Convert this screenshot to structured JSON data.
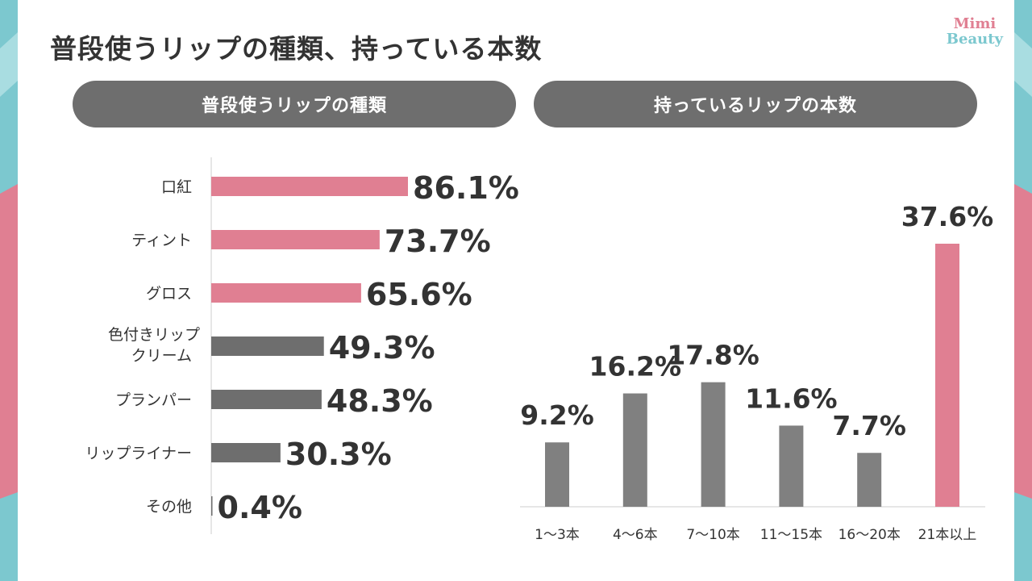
{
  "page": {
    "title": "普段使うリップの種類、持っている本数",
    "logo_line1": "Mimi",
    "logo_line2": "Beauty"
  },
  "colors": {
    "pink": "#e07f92",
    "gray": "#6e6e6e",
    "bar_gray": "#808080",
    "teal": "#7cc8cf",
    "text": "#333333"
  },
  "chart_data": [
    {
      "type": "bar",
      "orientation": "horizontal",
      "title": "普段使うリップの種類",
      "categories": [
        "口紅",
        "ティント",
        "グロス",
        "色付きリップ\nクリーム",
        "プランパー",
        "リップライナー",
        "その他"
      ],
      "values": [
        86.1,
        73.7,
        65.6,
        49.3,
        48.3,
        30.3,
        0.4
      ],
      "value_labels": [
        "86.1%",
        "73.7%",
        "65.6%",
        "49.3%",
        "48.3%",
        "30.3%",
        "0.4%"
      ],
      "highlight": [
        true,
        true,
        true,
        false,
        false,
        false,
        false
      ],
      "unit": "%"
    },
    {
      "type": "bar",
      "orientation": "vertical",
      "title": "持っているリップの本数",
      "categories": [
        "1〜3本",
        "4〜6本",
        "7〜10本",
        "11〜15本",
        "16〜20本",
        "21本以上"
      ],
      "values": [
        9.2,
        16.2,
        17.8,
        11.6,
        7.7,
        37.6
      ],
      "value_labels": [
        "9.2%",
        "16.2%",
        "17.8%",
        "11.6%",
        "7.7%",
        "37.6%"
      ],
      "highlight": [
        false,
        false,
        false,
        false,
        false,
        true
      ],
      "unit": "%"
    }
  ]
}
